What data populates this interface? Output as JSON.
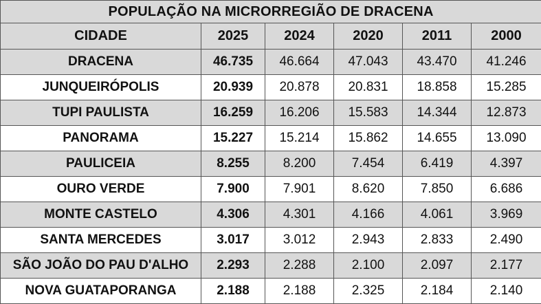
{
  "table": {
    "title": "POPULAÇÃO NA MICRORREGIÃO DE DRACENA",
    "columns": [
      "CIDADE",
      "2025",
      "2024",
      "2020",
      "2011",
      "2000"
    ],
    "rows": [
      {
        "city": "DRACENA",
        "values": [
          "46.735",
          "46.664",
          "47.043",
          "43.470",
          "41.246"
        ]
      },
      {
        "city": "JUNQUEIRÓPOLIS",
        "values": [
          "20.939",
          "20.878",
          "20.831",
          "18.858",
          "15.285"
        ]
      },
      {
        "city": "TUPI PAULISTA",
        "values": [
          "16.259",
          "16.206",
          "15.583",
          "14.344",
          "12.873"
        ]
      },
      {
        "city": "PANORAMA",
        "values": [
          "15.227",
          "15.214",
          "15.862",
          "14.655",
          "13.090"
        ]
      },
      {
        "city": "PAULICEIA",
        "values": [
          "8.255",
          "8.200",
          "7.454",
          "6.419",
          "4.397"
        ]
      },
      {
        "city": "OURO VERDE",
        "values": [
          "7.900",
          "7.901",
          "8.620",
          "7.850",
          "6.686"
        ]
      },
      {
        "city": "MONTE CASTELO",
        "values": [
          "4.306",
          "4.301",
          "4.166",
          "4.061",
          "3.969"
        ]
      },
      {
        "city": "SANTA MERCEDES",
        "values": [
          "3.017",
          "3.012",
          "2.943",
          "2.833",
          "2.490"
        ]
      },
      {
        "city": "SÃO JOÃO DO PAU D'ALHO",
        "values": [
          "2.293",
          "2.288",
          "2.100",
          "2.097",
          "2.177"
        ]
      },
      {
        "city": "NOVA GUATAPORANGA",
        "values": [
          "2.188",
          "2.188",
          "2.325",
          "2.184",
          "2.140"
        ]
      }
    ]
  },
  "colors": {
    "header_fill": "#d9d9d9",
    "shade_fill": "#d9d9d9",
    "border": "#555555"
  }
}
